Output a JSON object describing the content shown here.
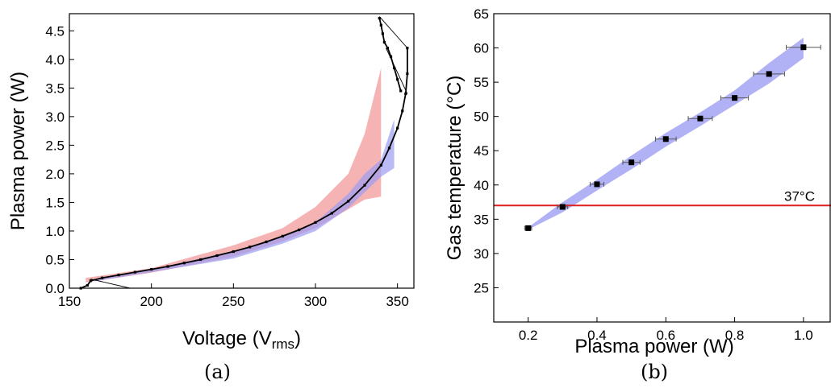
{
  "chart_data": [
    {
      "type": "scatter",
      "panel_label": "(a)",
      "xlabel": "Voltage (V",
      "xlabel_sub": "rms",
      "xlabel_end": ")",
      "ylabel": "Plasma power (W)",
      "xlim": [
        150,
        360
      ],
      "ylim": [
        0,
        4.8
      ],
      "xticks": [
        150,
        200,
        250,
        300,
        350
      ],
      "yticks": [
        0.0,
        0.5,
        1.0,
        1.5,
        2.0,
        2.5,
        3.0,
        3.5,
        4.0,
        4.5
      ],
      "ytick_labels": [
        "0.0",
        "0.5",
        "1.0",
        "1.5",
        "2.0",
        "2.5",
        "3.0",
        "3.5",
        "4.0",
        "4.5"
      ],
      "colors": {
        "band_red": "#f4a0a0",
        "band_blue": "#9d9df4",
        "points": "#000000"
      },
      "band_red": {
        "x": [
          160,
          200,
          250,
          280,
          300,
          320,
          330,
          340
        ],
        "lower": [
          0.1,
          0.27,
          0.55,
          0.82,
          1.05,
          1.38,
          1.55,
          1.6
        ],
        "upper": [
          0.18,
          0.35,
          0.75,
          1.05,
          1.42,
          2.0,
          2.7,
          3.85
        ]
      },
      "band_blue": {
        "x": [
          165,
          200,
          250,
          280,
          300,
          320,
          330,
          340,
          348
        ],
        "lower": [
          0.12,
          0.28,
          0.52,
          0.78,
          1.0,
          1.4,
          1.68,
          1.95,
          2.1
        ],
        "upper": [
          0.15,
          0.33,
          0.65,
          0.9,
          1.15,
          1.65,
          2.0,
          2.25,
          2.95
        ]
      },
      "series": [
        {
          "x": [
            157,
            161,
            163,
            170,
            180,
            190,
            200,
            210,
            220,
            230,
            240,
            250,
            260,
            270,
            280,
            290,
            300,
            310,
            320,
            330,
            340,
            345,
            350,
            353,
            355,
            356,
            356
          ],
          "y": [
            0.0,
            0.05,
            0.13,
            0.18,
            0.23,
            0.28,
            0.33,
            0.38,
            0.44,
            0.5,
            0.57,
            0.64,
            0.72,
            0.81,
            0.91,
            1.02,
            1.15,
            1.31,
            1.52,
            1.8,
            2.15,
            2.45,
            2.8,
            3.1,
            3.4,
            3.75,
            4.2
          ]
        },
        {
          "x": [
            339,
            340,
            341,
            342,
            344,
            346,
            348,
            350,
            352
          ],
          "y": [
            4.72,
            4.6,
            4.45,
            4.3,
            4.2,
            4.05,
            3.85,
            3.65,
            3.45
          ]
        }
      ],
      "connector_lines": [
        {
          "x": [
            163,
            187
          ],
          "y": [
            0.16,
            0.0
          ]
        },
        {
          "x": [
            339,
            356
          ],
          "y": [
            4.75,
            4.2
          ]
        },
        {
          "x": [
            343,
            356
          ],
          "y": [
            4.2,
            3.4
          ]
        }
      ]
    },
    {
      "type": "scatter",
      "panel_label": "(b)",
      "xlabel": "Plasma power (W)",
      "ylabel": "Gas temperature (°C)",
      "xlim": [
        0.1,
        1.08
      ],
      "ylim": [
        20,
        65
      ],
      "xticks": [
        0.2,
        0.4,
        0.6,
        0.8,
        1.0
      ],
      "xtick_labels": [
        "0.2",
        "0.4",
        "0.6",
        "0.8",
        "1.0"
      ],
      "yticks": [
        25,
        30,
        35,
        40,
        45,
        50,
        55,
        60,
        65
      ],
      "colors": {
        "band_blue": "#9d9df4",
        "reference_line": "#e02020",
        "points": "#000000"
      },
      "reference_line": {
        "y": 37,
        "label": "37°C"
      },
      "band_blue": {
        "x": [
          0.2,
          0.3,
          0.4,
          0.5,
          0.6,
          0.7,
          0.8,
          0.9,
          1.0
        ],
        "lower": [
          33.5,
          36.0,
          39.2,
          42.3,
          45.6,
          48.6,
          51.7,
          54.8,
          58.5
        ],
        "upper": [
          33.8,
          37.5,
          40.8,
          44.3,
          47.6,
          50.6,
          53.8,
          57.8,
          61.5
        ]
      },
      "x": [
        0.2,
        0.3,
        0.4,
        0.5,
        0.6,
        0.7,
        0.8,
        0.9,
        1.0
      ],
      "y": [
        33.7,
        36.8,
        40.1,
        43.3,
        46.7,
        49.7,
        52.7,
        56.2,
        60.1
      ],
      "xerr": [
        0.01,
        0.015,
        0.02,
        0.025,
        0.03,
        0.035,
        0.04,
        0.045,
        0.05
      ]
    }
  ]
}
